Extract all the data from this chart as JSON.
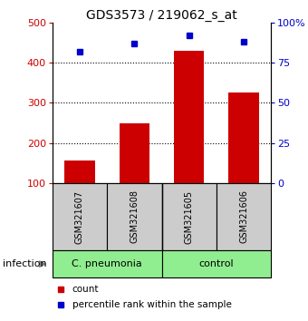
{
  "title": "GDS3573 / 219062_s_at",
  "samples": [
    "GSM321607",
    "GSM321608",
    "GSM321605",
    "GSM321606"
  ],
  "counts": [
    155,
    248,
    430,
    325
  ],
  "percentiles": [
    82,
    87,
    92,
    88
  ],
  "bar_color": "#cc0000",
  "dot_color": "#0000cc",
  "ylim_left": [
    100,
    500
  ],
  "ylim_right": [
    0,
    100
  ],
  "yticks_left": [
    100,
    200,
    300,
    400,
    500
  ],
  "yticks_right": [
    0,
    25,
    50,
    75,
    100
  ],
  "yticklabels_right": [
    "0",
    "25",
    "50",
    "75",
    "100%"
  ],
  "background_color": "#ffffff",
  "sample_box_color": "#cccccc",
  "group_colors": [
    "#90ee90",
    "#90ee90"
  ],
  "group_labels": [
    "C. pneumonia",
    "control"
  ],
  "infection_label": "infection",
  "legend_count_label": "count",
  "legend_pct_label": "percentile rank within the sample",
  "title_fontsize": 10,
  "tick_fontsize": 8,
  "sample_fontsize": 7,
  "group_fontsize": 8,
  "legend_fontsize": 7.5
}
